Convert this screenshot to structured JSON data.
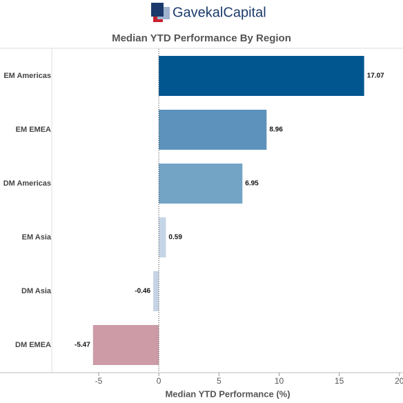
{
  "logo": {
    "first": "Gavekal",
    "second": "Capital"
  },
  "chart_data": {
    "type": "bar",
    "orientation": "horizontal",
    "title": "Median YTD Performance By Region",
    "x_label": "Median YTD Performance (%)",
    "categories": [
      "EM Americas",
      "EM EMEA",
      "DM Americas",
      "EM Asia",
      "DM Asia",
      "DM EMEA"
    ],
    "values": [
      17.07,
      8.96,
      6.95,
      0.59,
      -0.46,
      -5.47
    ],
    "colors": [
      "#02568f",
      "#5c92bb",
      "#73a4c6",
      "#c4d5e7",
      "#c5d3e5",
      "#cc9ba6"
    ],
    "xlim": [
      -8.9,
      20.3
    ],
    "xticks": [
      -5,
      0,
      5,
      10,
      15,
      20
    ],
    "grid": false
  }
}
